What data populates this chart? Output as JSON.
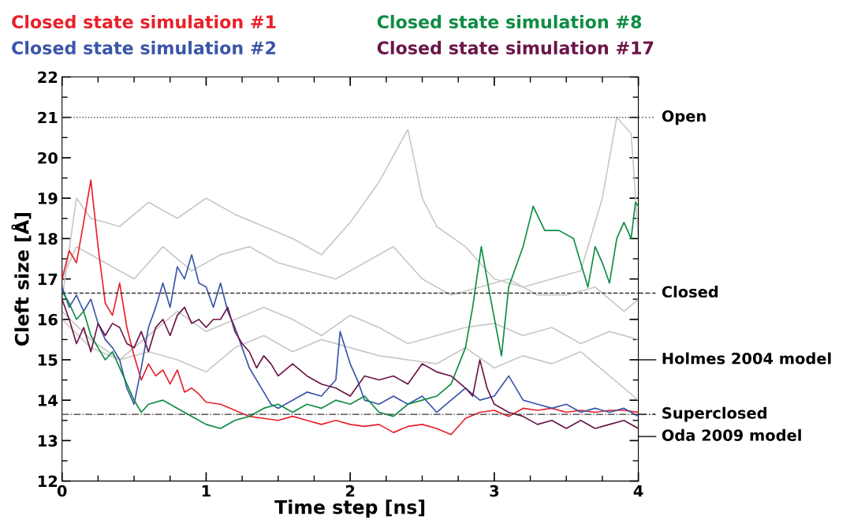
{
  "chart_data": {
    "type": "line",
    "xlabel": "Time step [ns]",
    "ylabel": "Cleft size [Å]",
    "xlim": [
      0,
      4
    ],
    "ylim": [
      12,
      22
    ],
    "xticks": [
      0,
      1,
      2,
      3,
      4
    ],
    "yticks": [
      12,
      13,
      14,
      15,
      16,
      17,
      18,
      19,
      20,
      21,
      22
    ],
    "grid": false,
    "marker": "none",
    "line_style": "solid",
    "series": [
      {
        "color": "#c8c8c8",
        "x": [
          0,
          0.1,
          0.2,
          0.4,
          0.6,
          0.8,
          1.0,
          1.2,
          1.4,
          1.6,
          1.8,
          2.0,
          2.2,
          2.4,
          2.5,
          2.6,
          2.8,
          3.0,
          3.2,
          3.4,
          3.6,
          3.75,
          3.85,
          3.95,
          4.0
        ],
        "values": [
          16.5,
          19.0,
          18.5,
          18.3,
          18.9,
          18.5,
          19.0,
          18.6,
          18.3,
          18.0,
          17.6,
          18.4,
          19.4,
          20.7,
          19.0,
          18.3,
          17.8,
          17.0,
          16.8,
          17.0,
          17.2,
          19.0,
          21.0,
          20.6,
          18.0
        ]
      },
      {
        "color": "#c8c8c8",
        "x": [
          0,
          0.1,
          0.3,
          0.5,
          0.7,
          0.9,
          1.1,
          1.3,
          1.5,
          1.7,
          1.9,
          2.1,
          2.3,
          2.5,
          2.7,
          2.9,
          3.1,
          3.3,
          3.5,
          3.7,
          3.9,
          4.0
        ],
        "values": [
          17.0,
          17.8,
          17.4,
          17.0,
          17.8,
          17.2,
          17.6,
          17.8,
          17.4,
          17.2,
          17.0,
          17.4,
          17.8,
          17.0,
          16.6,
          16.8,
          17.0,
          16.6,
          16.6,
          16.8,
          16.2,
          16.5
        ]
      },
      {
        "color": "#c8c8c8",
        "x": [
          0,
          0.2,
          0.4,
          0.6,
          0.8,
          1.0,
          1.2,
          1.4,
          1.6,
          1.8,
          2.0,
          2.2,
          2.4,
          2.6,
          2.8,
          3.0,
          3.2,
          3.4,
          3.6,
          3.8,
          4.0
        ],
        "values": [
          16.2,
          15.5,
          15.0,
          15.6,
          16.2,
          15.7,
          16.0,
          16.3,
          16.0,
          15.6,
          16.1,
          15.8,
          15.4,
          15.6,
          15.8,
          15.9,
          15.6,
          15.8,
          15.4,
          15.7,
          15.5
        ]
      },
      {
        "color": "#c8c8c8",
        "x": [
          0,
          0.2,
          0.4,
          0.6,
          0.8,
          1.0,
          1.2,
          1.4,
          1.6,
          1.8,
          2.0,
          2.2,
          2.4,
          2.6,
          2.8,
          3.0,
          3.2,
          3.4,
          3.6,
          3.8,
          4.0
        ],
        "values": [
          16.0,
          15.3,
          15.0,
          15.2,
          15.0,
          14.7,
          15.3,
          15.6,
          15.2,
          15.5,
          15.3,
          15.1,
          15.0,
          14.9,
          15.3,
          14.8,
          15.1,
          14.9,
          15.2,
          14.6,
          14.0
        ]
      },
      {
        "name": "Closed state simulation #1",
        "color": "#e8202a",
        "x": [
          0,
          0.05,
          0.1,
          0.15,
          0.2,
          0.25,
          0.3,
          0.35,
          0.4,
          0.45,
          0.5,
          0.55,
          0.6,
          0.65,
          0.7,
          0.75,
          0.8,
          0.85,
          0.9,
          0.95,
          1.0,
          1.1,
          1.2,
          1.3,
          1.4,
          1.5,
          1.6,
          1.7,
          1.8,
          1.9,
          2.0,
          2.1,
          2.2,
          2.3,
          2.4,
          2.5,
          2.6,
          2.7,
          2.8,
          2.9,
          3.0,
          3.1,
          3.2,
          3.3,
          3.4,
          3.5,
          3.6,
          3.7,
          3.8,
          3.9,
          4.0
        ],
        "values": [
          17.0,
          17.7,
          17.4,
          18.4,
          19.45,
          17.8,
          16.4,
          16.1,
          16.9,
          15.8,
          15.1,
          14.5,
          14.9,
          14.6,
          14.75,
          14.4,
          14.75,
          14.2,
          14.3,
          14.15,
          13.95,
          13.9,
          13.75,
          13.6,
          13.55,
          13.5,
          13.6,
          13.5,
          13.4,
          13.5,
          13.4,
          13.35,
          13.4,
          13.2,
          13.35,
          13.4,
          13.3,
          13.15,
          13.55,
          13.7,
          13.75,
          13.6,
          13.8,
          13.75,
          13.8,
          13.7,
          13.75,
          13.7,
          13.75,
          13.75,
          13.7
        ]
      },
      {
        "name": "Closed state simulation #2",
        "color": "#3a55a8",
        "x": [
          0,
          0.05,
          0.1,
          0.15,
          0.2,
          0.25,
          0.3,
          0.35,
          0.4,
          0.45,
          0.5,
          0.55,
          0.6,
          0.65,
          0.7,
          0.75,
          0.8,
          0.85,
          0.9,
          0.95,
          1.0,
          1.05,
          1.1,
          1.15,
          1.2,
          1.25,
          1.3,
          1.35,
          1.4,
          1.45,
          1.5,
          1.6,
          1.7,
          1.8,
          1.9,
          1.93,
          2.0,
          2.05,
          2.1,
          2.2,
          2.3,
          2.4,
          2.5,
          2.6,
          2.7,
          2.8,
          2.9,
          3.0,
          3.1,
          3.2,
          3.3,
          3.4,
          3.5,
          3.6,
          3.7,
          3.8,
          3.9,
          4.0
        ],
        "values": [
          16.8,
          16.3,
          16.6,
          16.2,
          16.5,
          15.9,
          15.5,
          15.3,
          15.0,
          14.3,
          13.9,
          14.8,
          15.8,
          16.3,
          16.9,
          16.3,
          17.3,
          17.0,
          17.6,
          16.9,
          16.8,
          16.3,
          16.9,
          16.2,
          15.8,
          15.3,
          14.8,
          14.5,
          14.2,
          13.9,
          13.8,
          14.0,
          14.2,
          14.1,
          14.5,
          15.7,
          14.9,
          14.5,
          14.0,
          13.9,
          14.1,
          13.9,
          14.1,
          13.7,
          14.0,
          14.3,
          14.0,
          14.1,
          14.6,
          14.0,
          13.9,
          13.8,
          13.9,
          13.7,
          13.8,
          13.7,
          13.8,
          13.6
        ]
      },
      {
        "name": "Closed state simulation #8",
        "color": "#0e8c43",
        "x": [
          0,
          0.05,
          0.1,
          0.15,
          0.2,
          0.25,
          0.3,
          0.35,
          0.4,
          0.45,
          0.5,
          0.55,
          0.6,
          0.7,
          0.8,
          0.9,
          1.0,
          1.1,
          1.2,
          1.3,
          1.4,
          1.5,
          1.6,
          1.7,
          1.8,
          1.9,
          2.0,
          2.1,
          2.2,
          2.3,
          2.4,
          2.5,
          2.6,
          2.7,
          2.8,
          2.85,
          2.91,
          2.97,
          3.05,
          3.1,
          3.2,
          3.27,
          3.35,
          3.45,
          3.55,
          3.6,
          3.65,
          3.7,
          3.75,
          3.8,
          3.85,
          3.9,
          3.95,
          3.98,
          4.0
        ],
        "values": [
          16.7,
          16.4,
          16.0,
          16.2,
          15.6,
          15.3,
          15.0,
          15.2,
          14.8,
          14.4,
          14.0,
          13.7,
          13.9,
          14.0,
          13.8,
          13.6,
          13.4,
          13.3,
          13.5,
          13.6,
          13.8,
          13.9,
          13.7,
          13.9,
          13.8,
          14.0,
          13.9,
          14.1,
          13.7,
          13.6,
          13.9,
          14.0,
          14.1,
          14.4,
          15.3,
          16.3,
          17.8,
          16.6,
          15.1,
          16.8,
          17.8,
          18.8,
          18.2,
          18.2,
          18.0,
          17.4,
          16.8,
          17.8,
          17.4,
          16.9,
          18.0,
          18.4,
          18.0,
          18.9,
          18.8
        ]
      },
      {
        "name": "Closed state simulation #17",
        "color": "#6b1548",
        "x": [
          0,
          0.05,
          0.1,
          0.15,
          0.2,
          0.25,
          0.3,
          0.35,
          0.4,
          0.45,
          0.5,
          0.55,
          0.6,
          0.65,
          0.7,
          0.75,
          0.8,
          0.85,
          0.9,
          0.95,
          1.0,
          1.05,
          1.1,
          1.15,
          1.2,
          1.25,
          1.3,
          1.35,
          1.4,
          1.45,
          1.5,
          1.6,
          1.7,
          1.8,
          1.9,
          2.0,
          2.1,
          2.2,
          2.3,
          2.4,
          2.5,
          2.6,
          2.7,
          2.8,
          2.85,
          2.9,
          2.95,
          3.0,
          3.1,
          3.2,
          3.3,
          3.4,
          3.5,
          3.6,
          3.7,
          3.8,
          3.9,
          4.0
        ],
        "values": [
          16.5,
          16.0,
          15.4,
          15.8,
          15.2,
          15.9,
          15.6,
          15.9,
          15.8,
          15.4,
          15.3,
          15.7,
          15.2,
          15.8,
          16.0,
          15.6,
          16.1,
          16.3,
          15.9,
          16.0,
          15.8,
          16.0,
          16.0,
          16.3,
          15.7,
          15.4,
          15.2,
          14.8,
          15.1,
          14.9,
          14.6,
          14.9,
          14.6,
          14.4,
          14.3,
          14.1,
          14.6,
          14.5,
          14.6,
          14.4,
          14.9,
          14.7,
          14.6,
          14.3,
          14.1,
          15.0,
          14.3,
          13.9,
          13.7,
          13.6,
          13.4,
          13.5,
          13.3,
          13.5,
          13.3,
          13.4,
          13.5,
          13.3
        ]
      }
    ],
    "ref_lines": [
      {
        "axis": "y",
        "value": 21,
        "label": "Open",
        "color": "#555555",
        "line_style": "dotted"
      },
      {
        "axis": "y",
        "value": 16.65,
        "label": "Closed",
        "color": "#333333",
        "line_style": "dashed"
      },
      {
        "axis": "y",
        "value": 13.65,
        "label": "Superclosed",
        "color": "#333333",
        "line_style": "dashdot"
      },
      {
        "axis": "y",
        "value": 15,
        "label": "Holmes 2004 model",
        "color": "#333333",
        "line_style": "solid"
      },
      {
        "axis": "y",
        "value": 13.1,
        "label": "Oda 2009 model",
        "color": "#333333",
        "line_style": "solid"
      }
    ]
  }
}
